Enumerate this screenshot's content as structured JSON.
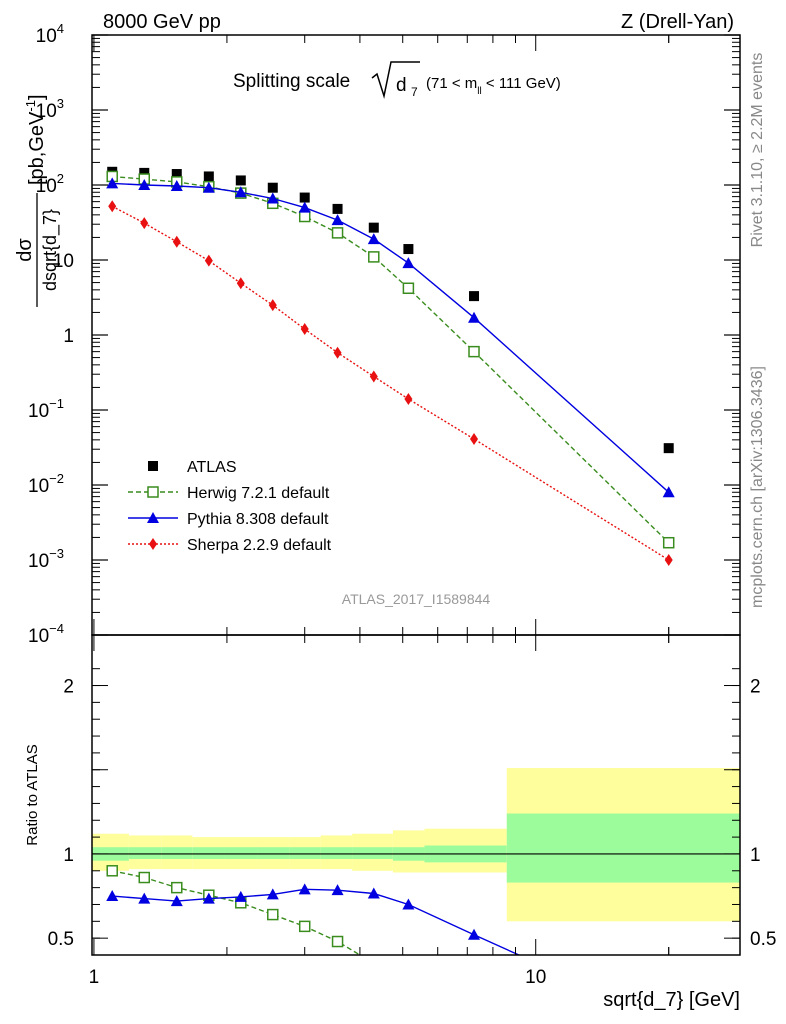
{
  "header": {
    "left": "8000 GeV pp",
    "right": "Z (Drell-Yan)"
  },
  "side_labels": {
    "rivet": "Rivet 3.1.10, ≥ 2.2M events",
    "mcplots": "mcplots.cern.ch [arXiv:1306.3436]"
  },
  "chart_data": [
    {
      "type": "line",
      "title_main": "Splitting scale",
      "title_sqrt_symbol": "d",
      "title_sqrt_sub": "7",
      "title_range": "(71 < m",
      "title_range_sub": "ll",
      "title_range_end": " < 111 GeV)",
      "watermark": "ATLAS_2017_I1589844",
      "ylabel_num": "dσ",
      "ylabel_den": "dsqrt{d_7}",
      "ylabel_unit": "[pb,GeV",
      "ylabel_unit_sup": "-1",
      "ylabel_unit_end": "]",
      "yscale": "log",
      "xscale": "log",
      "xlim": [
        0.99,
        29.0
      ],
      "ylim": [
        0.0001,
        10000
      ],
      "ytick_labels": [
        {
          "v": 10000,
          "base": "10",
          "exp": "4"
        },
        {
          "v": 1000,
          "base": "10",
          "exp": "3"
        },
        {
          "v": 100,
          "base": "10",
          "exp": "2"
        },
        {
          "v": 10,
          "base": "10",
          "exp": ""
        },
        {
          "v": 1,
          "base": "1",
          "exp": ""
        },
        {
          "v": 0.1,
          "base": "10",
          "exp": "−1"
        },
        {
          "v": 0.01,
          "base": "10",
          "exp": "−2"
        },
        {
          "v": 0.001,
          "base": "10",
          "exp": "−3"
        },
        {
          "v": 0.0001,
          "base": "10",
          "exp": "−4"
        }
      ],
      "legend_position": "bottom-left",
      "series": [
        {
          "name": "ATLAS",
          "marker": "square-filled",
          "color": "#000000",
          "x": [
            1.1,
            1.3,
            1.54,
            1.82,
            2.15,
            2.54,
            3.0,
            3.56,
            4.3,
            5.15,
            7.25,
            20.0
          ],
          "y": [
            150,
            145,
            140,
            130,
            115,
            92,
            68,
            48,
            27,
            14,
            3.3,
            0.031
          ]
        },
        {
          "name": "Herwig 7.2.1 default",
          "marker": "square-open",
          "line": "dashed",
          "color": "#3a8c1e",
          "x": [
            1.1,
            1.3,
            1.54,
            1.82,
            2.15,
            2.54,
            3.0,
            3.56,
            4.3,
            5.15,
            7.25,
            20.0
          ],
          "y": [
            130,
            120,
            110,
            95,
            78,
            57,
            38,
            23,
            11,
            4.2,
            0.6,
            0.0017
          ]
        },
        {
          "name": "Pythia 8.308 default",
          "marker": "triangle-filled",
          "line": "solid",
          "color": "#0000e0",
          "x": [
            1.1,
            1.3,
            1.54,
            1.82,
            2.15,
            2.54,
            3.0,
            3.56,
            4.3,
            5.15,
            7.25,
            20.0
          ],
          "y": [
            105,
            100,
            97,
            92,
            80,
            66,
            50,
            34,
            19,
            9.1,
            1.7,
            0.008
          ]
        },
        {
          "name": "Sherpa 2.2.9 default",
          "marker": "diamond-filled",
          "line": "dotted",
          "color": "#e81010",
          "x": [
            1.1,
            1.3,
            1.54,
            1.82,
            2.15,
            2.54,
            3.0,
            3.56,
            4.3,
            5.15,
            7.25,
            20.0
          ],
          "y": [
            52,
            31,
            17.5,
            9.8,
            4.9,
            2.5,
            1.2,
            0.58,
            0.28,
            0.14,
            0.041,
            0.001
          ]
        }
      ]
    },
    {
      "type": "line",
      "ylabel": "Ratio to ATLAS",
      "xlabel": "sqrt{d_7} [GeV]",
      "xscale": "log",
      "xlim": [
        0.99,
        29.0
      ],
      "ylim": [
        0.4,
        2.3
      ],
      "yticks": [
        {
          "v": 2,
          "label": "2"
        },
        {
          "v": 1,
          "label": "1"
        },
        {
          "v": 0.5,
          "label": "0.5"
        }
      ],
      "xticks": [
        {
          "v": 1,
          "label": "1"
        },
        {
          "v": 10,
          "label": "10"
        }
      ],
      "bands": {
        "bin_edges": [
          0.99,
          1.2,
          1.42,
          1.67,
          1.98,
          2.34,
          2.77,
          3.26,
          3.84,
          4.75,
          5.6,
          8.6,
          29.0
        ],
        "stat_lo": [
          0.96,
          0.97,
          0.97,
          0.97,
          0.97,
          0.97,
          0.97,
          0.97,
          0.97,
          0.96,
          0.95,
          0.83
        ],
        "stat_hi": [
          1.04,
          1.04,
          1.04,
          1.04,
          1.04,
          1.04,
          1.04,
          1.04,
          1.04,
          1.04,
          1.05,
          1.24
        ],
        "total_lo": [
          0.9,
          0.91,
          0.91,
          0.91,
          0.91,
          0.91,
          0.91,
          0.91,
          0.9,
          0.89,
          0.89,
          0.6
        ],
        "total_hi": [
          1.12,
          1.11,
          1.11,
          1.1,
          1.1,
          1.1,
          1.1,
          1.11,
          1.12,
          1.14,
          1.15,
          1.51
        ],
        "stat_color": "#9cfc9c",
        "total_color": "#fefe9c"
      },
      "series": [
        {
          "name": "Herwig 7.2.1 default",
          "marker": "square-open",
          "line": "dashed",
          "color": "#3a8c1e",
          "x": [
            1.1,
            1.3,
            1.54,
            1.82,
            2.15,
            2.54,
            3.0,
            3.56,
            4.3
          ],
          "y": [
            0.9,
            0.86,
            0.8,
            0.755,
            0.71,
            0.64,
            0.57,
            0.48,
            0.35
          ]
        },
        {
          "name": "Pythia 8.308 default",
          "marker": "triangle-filled",
          "line": "solid",
          "color": "#0000e0",
          "x": [
            1.1,
            1.3,
            1.54,
            1.82,
            2.15,
            2.54,
            3.0,
            3.56,
            4.3,
            5.15,
            7.25,
            9.9
          ],
          "y": [
            0.75,
            0.735,
            0.72,
            0.735,
            0.745,
            0.76,
            0.79,
            0.785,
            0.765,
            0.7,
            0.52,
            0.36
          ]
        }
      ]
    }
  ]
}
